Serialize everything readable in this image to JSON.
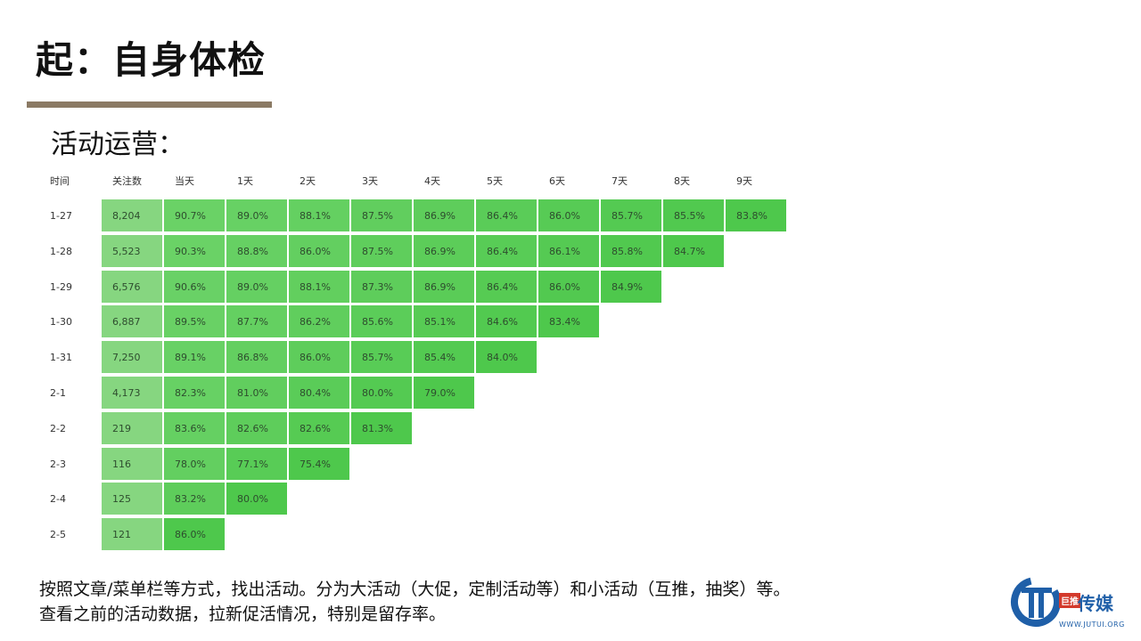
{
  "slide": {
    "title": "起：自身体检",
    "subtitle": "活动运营："
  },
  "table": {
    "headers": [
      "时间",
      "关注数",
      "当天",
      "1天",
      "2天",
      "3天",
      "4天",
      "5天",
      "6天",
      "7天",
      "8天",
      "9天"
    ],
    "rows": [
      {
        "date": "1-27",
        "cells": [
          "8,204",
          "90.7%",
          "89.0%",
          "88.1%",
          "87.5%",
          "86.9%",
          "86.4%",
          "86.0%",
          "85.7%",
          "85.5%",
          "83.8%"
        ]
      },
      {
        "date": "1-28",
        "cells": [
          "5,523",
          "90.3%",
          "88.8%",
          "86.0%",
          "87.5%",
          "86.9%",
          "86.4%",
          "86.1%",
          "85.8%",
          "84.7%"
        ]
      },
      {
        "date": "1-29",
        "cells": [
          "6,576",
          "90.6%",
          "89.0%",
          "88.1%",
          "87.3%",
          "86.9%",
          "86.4%",
          "86.0%",
          "84.9%"
        ]
      },
      {
        "date": "1-30",
        "cells": [
          "6,887",
          "89.5%",
          "87.7%",
          "86.2%",
          "85.6%",
          "85.1%",
          "84.6%",
          "83.4%"
        ]
      },
      {
        "date": "1-31",
        "cells": [
          "7,250",
          "89.1%",
          "86.8%",
          "86.0%",
          "85.7%",
          "85.4%",
          "84.0%"
        ]
      },
      {
        "date": "2-1",
        "cells": [
          "4,173",
          "82.3%",
          "81.0%",
          "80.4%",
          "80.0%",
          "79.0%"
        ]
      },
      {
        "date": "2-2",
        "cells": [
          "219",
          "83.6%",
          "82.6%",
          "82.6%",
          "81.3%"
        ]
      },
      {
        "date": "2-3",
        "cells": [
          "116",
          "78.0%",
          "77.1%",
          "75.4%"
        ]
      },
      {
        "date": "2-4",
        "cells": [
          "125",
          "83.2%",
          "80.0%"
        ]
      },
      {
        "date": "2-5",
        "cells": [
          "121",
          "86.0%"
        ]
      }
    ]
  },
  "footer": {
    "line1": "按照文章/菜单栏等方式，找出活动。分为大活动（大促，定制活动等）和小活动（互推，抽奖）等。",
    "line2": "查看之前的活动数据，拉新促活情况，特别是留存率。"
  },
  "logo": {
    "badge": "巨推",
    "name": "传媒",
    "url": "WWW.JUTUI.ORG"
  },
  "colors": {
    "title_bar": "#8b7a64",
    "cell_green_light": "#7fd97a",
    "cell_green_dark": "#4cc44a",
    "logo_blue": "#1f5fa8",
    "logo_red": "#d33a2c"
  }
}
